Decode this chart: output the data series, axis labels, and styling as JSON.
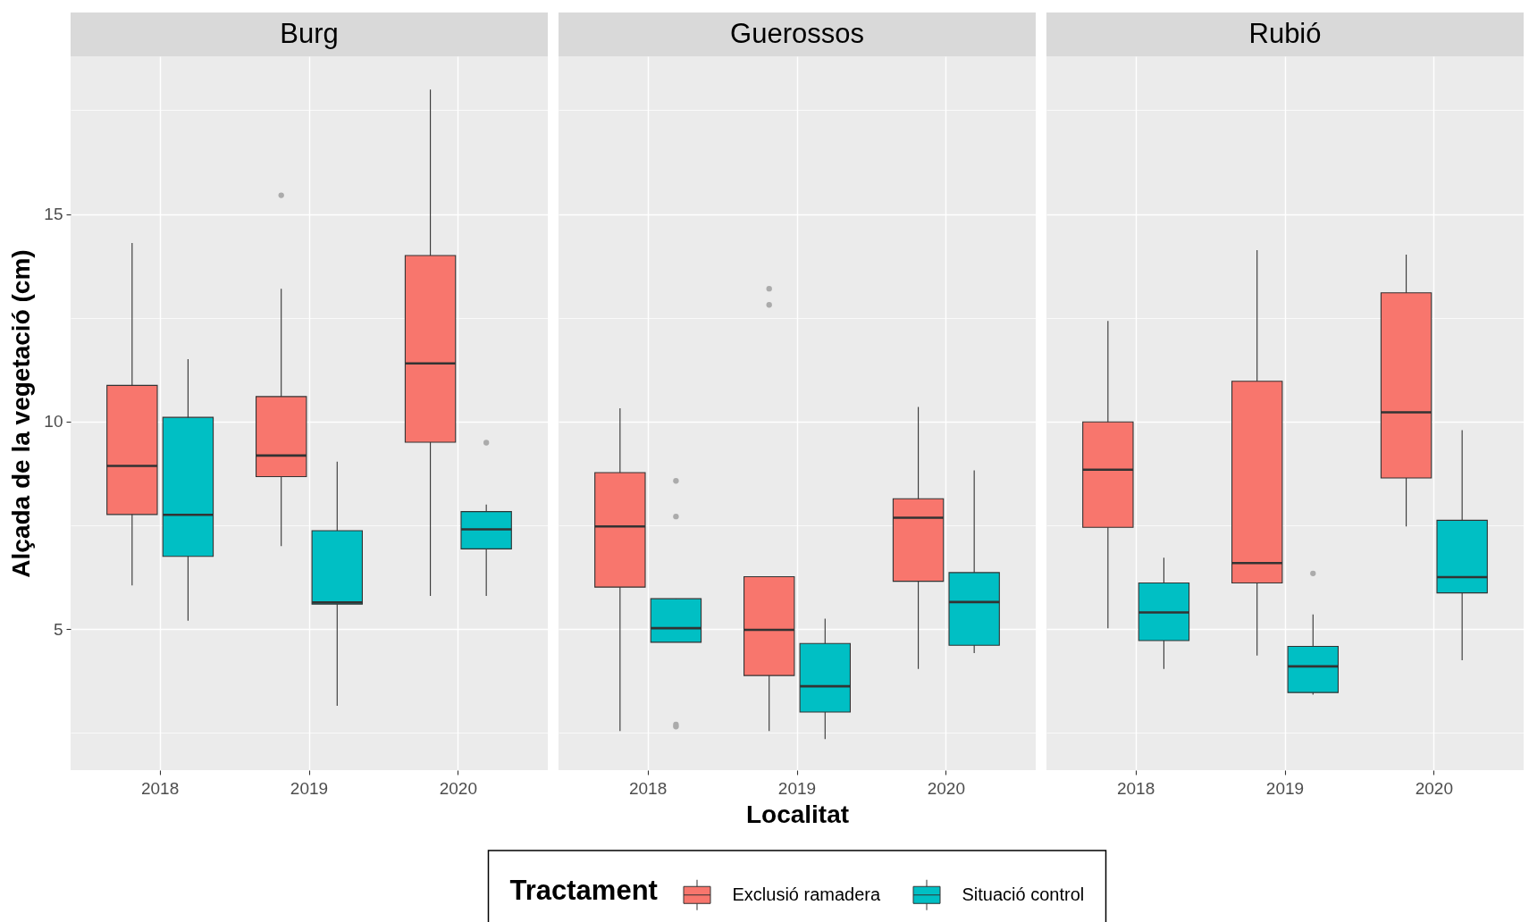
{
  "chart_data": [
    {
      "type": "box",
      "title": "Burg",
      "ylabel": "Alçada de la vegetació (cm)",
      "legend": "bottom",
      "legend_title": "Tractament",
      "categories": [
        "2018",
        "2019",
        "2020"
      ],
      "ylim": [
        1.6,
        18.8
      ],
      "yticks": [
        {
          "value": 2.5,
          "label": null
        },
        5,
        {
          "value": 7.5,
          "label": null
        },
        10,
        {
          "value": 12.5,
          "label": null
        },
        15,
        {
          "value": 17.5,
          "label": null
        }
      ],
      "grid": true,
      "series": [
        {
          "name": "Exclusió ramadera",
          "color": "#f8766d",
          "boxes": [
            {
              "low": 6.05,
              "q1": 7.76,
              "median": 8.93,
              "q3": 10.87,
              "high": 14.3
            },
            {
              "low": 7.0,
              "q1": 8.67,
              "median": 9.18,
              "q3": 10.6,
              "high": 13.2,
              "outliers": [
                15.45
              ]
            },
            {
              "low": 5.8,
              "q1": 9.5,
              "median": 11.4,
              "q3": 14.0,
              "high": 18.0
            }
          ]
        },
        {
          "name": "Situació control",
          "color": "#00bfc4",
          "boxes": [
            {
              "low": 5.2,
              "q1": 6.75,
              "median": 7.75,
              "q3": 10.1,
              "high": 11.5
            },
            {
              "low": 3.15,
              "q1": 5.6,
              "median": 5.64,
              "q3": 7.37,
              "high": 9.03
            },
            {
              "low": 5.8,
              "q1": 6.93,
              "median": 7.4,
              "q3": 7.83,
              "high": 8.0,
              "outliers": [
                9.49
              ]
            }
          ]
        }
      ]
    },
    {
      "type": "box",
      "title": "Guerossos",
      "xlabel": "Localitat",
      "tick_labels": "x",
      "categories": [
        "2018",
        "2019",
        "2020"
      ],
      "ylim": [
        1.6,
        18.8
      ],
      "yticks": [
        {
          "value": 2.5,
          "label": null
        },
        5,
        {
          "value": 7.5,
          "label": null
        },
        10,
        {
          "value": 12.5,
          "label": null
        },
        15,
        {
          "value": 17.5,
          "label": null
        }
      ],
      "grid": true,
      "series": [
        {
          "color": "#f8766d",
          "boxes": [
            {
              "low": 2.54,
              "q1": 6.01,
              "median": 7.47,
              "q3": 8.77,
              "high": 10.32
            },
            {
              "low": 2.54,
              "q1": 3.88,
              "median": 4.98,
              "q3": 6.26,
              "high": 6.26,
              "outliers": [
                12.81,
                13.2
              ]
            },
            {
              "low": 4.04,
              "q1": 6.15,
              "median": 7.68,
              "q3": 8.14,
              "high": 10.35
            }
          ]
        },
        {
          "color": "#00bfc4",
          "boxes": [
            {
              "low": 4.68,
              "q1": 4.68,
              "median": 5.02,
              "q3": 5.73,
              "high": 5.73,
              "outliers": [
                2.65,
                2.7,
                7.71,
                8.57
              ]
            },
            {
              "low": 2.35,
              "q1": 3.0,
              "median": 3.62,
              "q3": 4.65,
              "high": 5.25
            },
            {
              "low": 4.42,
              "q1": 4.61,
              "median": 5.65,
              "q3": 6.36,
              "high": 8.82
            }
          ]
        }
      ]
    },
    {
      "type": "box",
      "title": "Rubió",
      "tick_labels": "x",
      "categories": [
        "2018",
        "2019",
        "2020"
      ],
      "ylim": [
        1.6,
        18.8
      ],
      "yticks": [
        {
          "value": 2.5,
          "label": null
        },
        5,
        {
          "value": 7.5,
          "label": null
        },
        10,
        {
          "value": 12.5,
          "label": null
        },
        15,
        {
          "value": 17.5,
          "label": null
        }
      ],
      "grid": true,
      "series": [
        {
          "color": "#f8766d",
          "boxes": [
            {
              "low": 5.02,
              "q1": 7.45,
              "median": 8.84,
              "q3": 9.99,
              "high": 12.42
            },
            {
              "low": 4.36,
              "q1": 6.11,
              "median": 6.59,
              "q3": 10.97,
              "high": 14.13
            },
            {
              "low": 7.47,
              "q1": 8.64,
              "median": 10.22,
              "q3": 13.1,
              "high": 14.02
            }
          ]
        },
        {
          "color": "#00bfc4",
          "boxes": [
            {
              "low": 4.04,
              "q1": 4.72,
              "median": 5.4,
              "q3": 6.11,
              "high": 6.72
            },
            {
              "low": 3.42,
              "q1": 3.47,
              "median": 4.1,
              "q3": 4.58,
              "high": 5.35,
              "outliers": [
                6.34
              ]
            },
            {
              "low": 4.25,
              "q1": 5.87,
              "median": 6.25,
              "q3": 7.62,
              "high": 9.79
            }
          ]
        }
      ]
    }
  ]
}
